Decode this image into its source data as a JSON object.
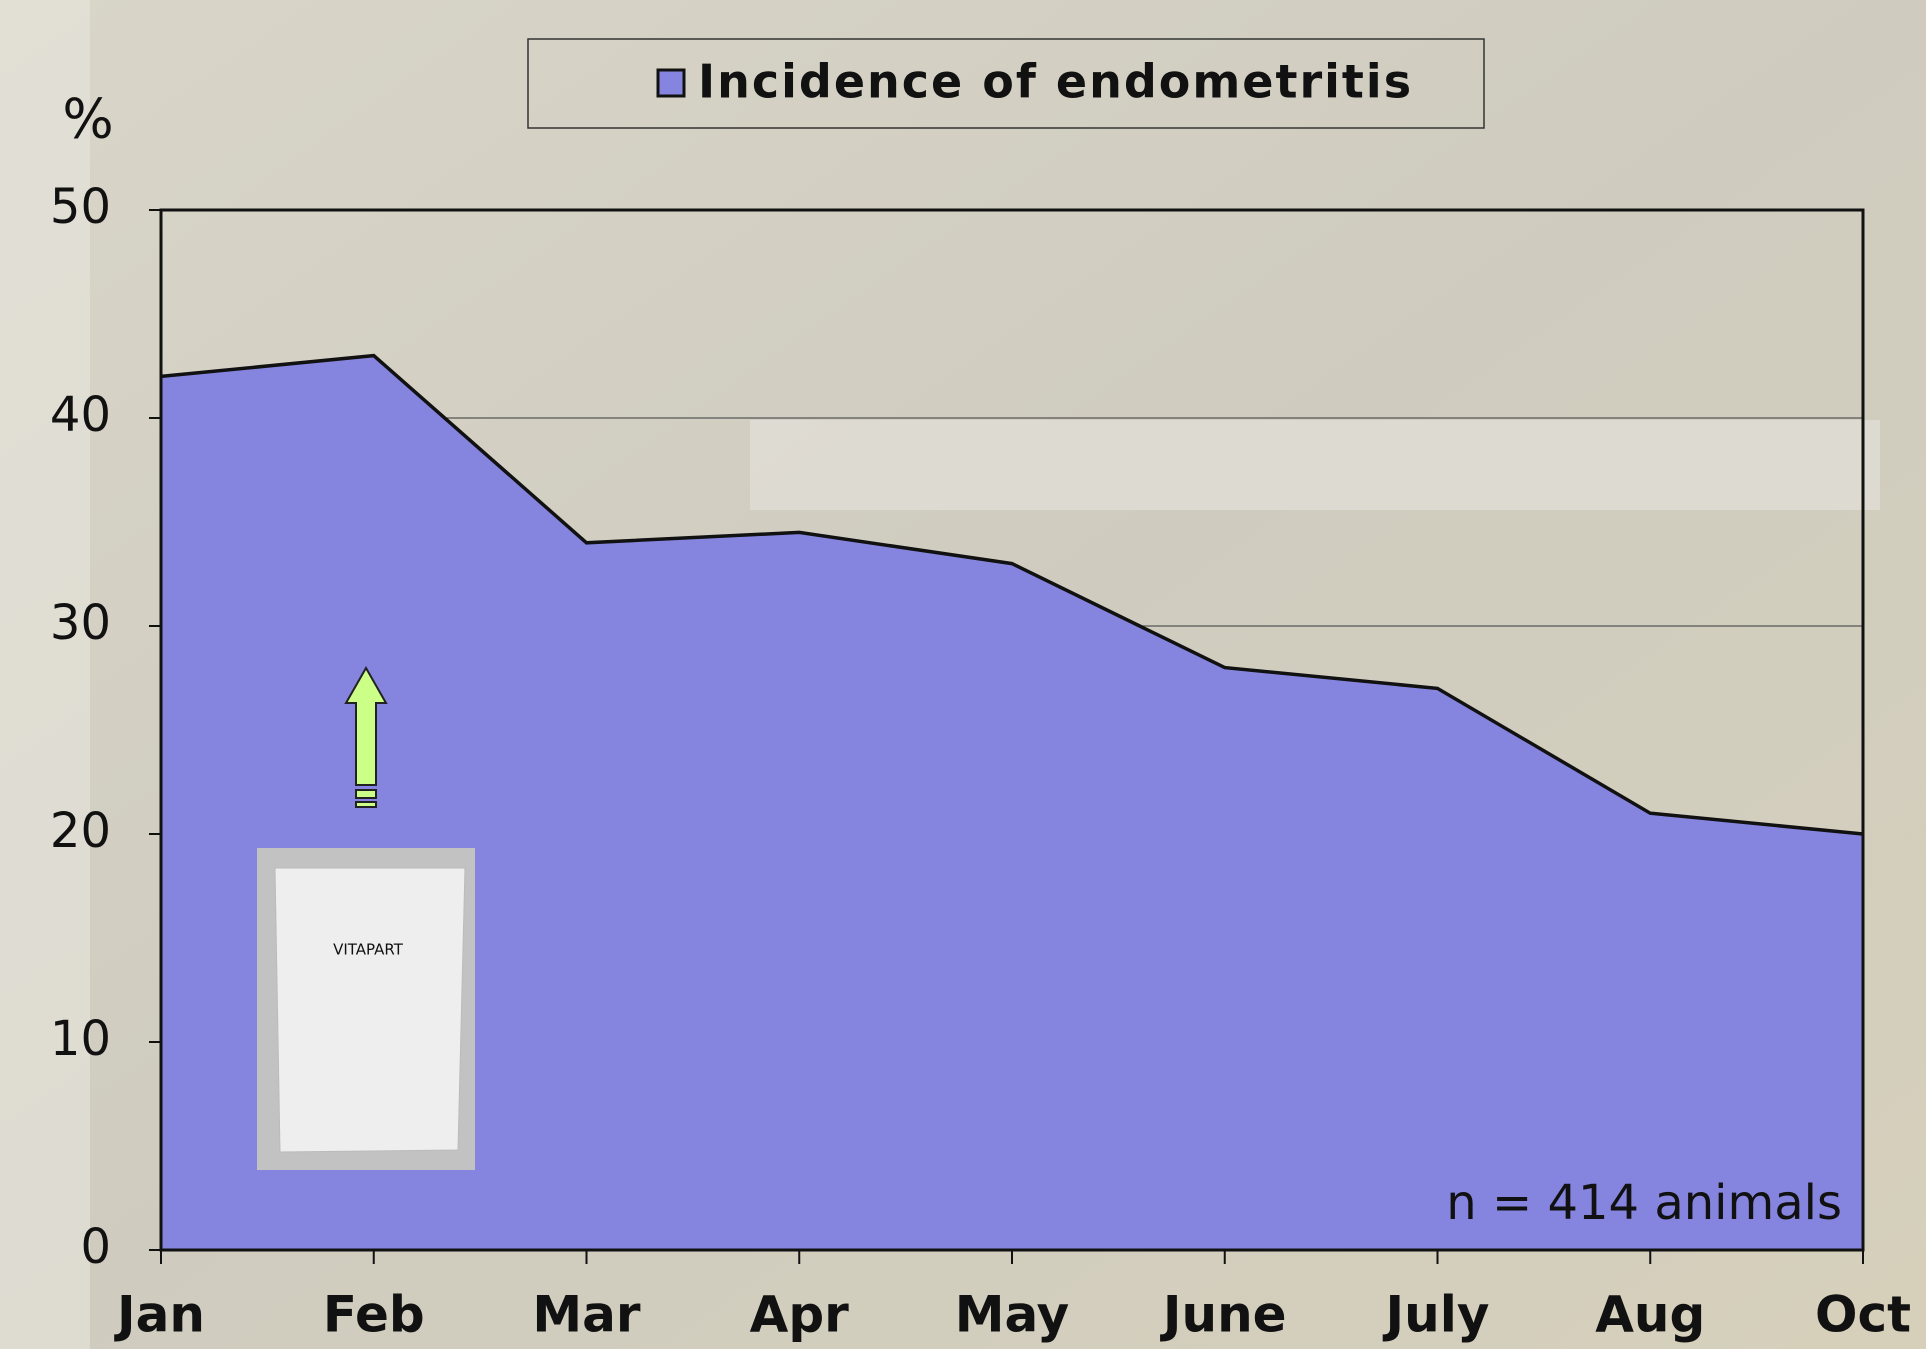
{
  "chart_data": {
    "type": "area",
    "y_label": "%",
    "categories": [
      "Jan",
      "Feb",
      "Mar",
      "Apr",
      "May",
      "June",
      "July",
      "Aug",
      "Oct"
    ],
    "series": [
      {
        "name": "Incidence of endometritis",
        "color": "#8585e0",
        "values": [
          42,
          43,
          34,
          34.5,
          33,
          28,
          27,
          21,
          20
        ]
      }
    ],
    "ylim": [
      0,
      50
    ],
    "yticks": [
      0,
      10,
      20,
      30,
      40,
      50
    ],
    "grid": true,
    "legend": "top",
    "annotation": "n = 414 animals",
    "product_label": "VITAPART"
  }
}
